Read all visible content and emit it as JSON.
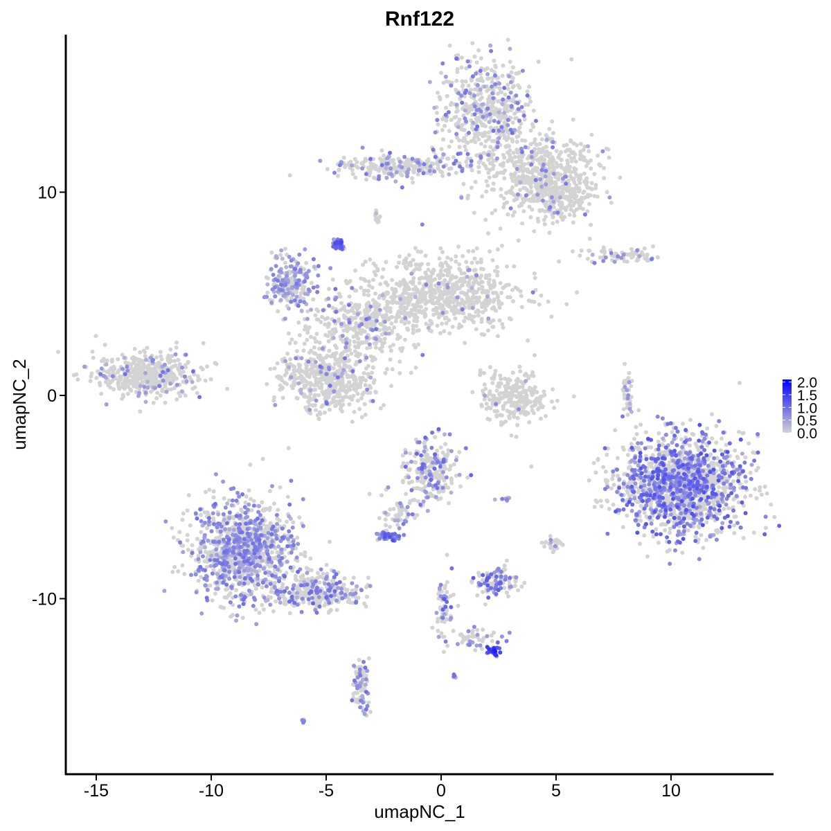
{
  "chart_data": {
    "type": "scatter",
    "title": "Rnf122",
    "xlabel": "umapNC_1",
    "ylabel": "umapNC_2",
    "xlim": [
      -16.3,
      14.5
    ],
    "ylim": [
      -18.6,
      17.7
    ],
    "xticks": [
      -15,
      -10,
      -5,
      0,
      5,
      10
    ],
    "xtick_labels": [
      "-15",
      "-10",
      "-5",
      "0",
      "5",
      "10"
    ],
    "yticks": [
      -10,
      0,
      10
    ],
    "ytick_labels": [
      "-10",
      "0",
      "10"
    ],
    "grid": false,
    "color_scale": {
      "low": "#D3D3D3",
      "high": "#0000FF",
      "min": 0,
      "max": 2.1
    },
    "legend": {
      "position": "right",
      "labels": [
        "2.0",
        "1.5",
        "1.0",
        "0.5",
        "0.0"
      ],
      "values": [
        2.0,
        1.5,
        1.0,
        0.5,
        0.0
      ]
    },
    "clusters": [
      {
        "x": 1.9,
        "y": 14.0,
        "sx": 1.1,
        "sy": 1.4,
        "n": 500,
        "frac": 0.22,
        "level": 1.0
      },
      {
        "x": 4.3,
        "y": 11.0,
        "sx": 1.4,
        "sy": 1.1,
        "n": 500,
        "frac": 0.05,
        "level": 0.9
      },
      {
        "x": 5.0,
        "y": 9.7,
        "sx": 0.9,
        "sy": 0.6,
        "n": 200,
        "frac": 0.06,
        "level": 0.9
      },
      {
        "x": -1.8,
        "y": 11.3,
        "sx": 1.6,
        "sy": 0.35,
        "n": 250,
        "frac": 0.15,
        "level": 1.0
      },
      {
        "x": -2.8,
        "y": 8.7,
        "sx": 0.15,
        "sy": 0.2,
        "n": 15,
        "frac": 0.1,
        "level": 0.8
      },
      {
        "x": -4.5,
        "y": 7.4,
        "sx": 0.15,
        "sy": 0.2,
        "n": 40,
        "frac": 0.9,
        "level": 1.4
      },
      {
        "x": 0.1,
        "y": 5.0,
        "sx": 1.8,
        "sy": 1.0,
        "n": 700,
        "frac": 0.04,
        "level": 0.9
      },
      {
        "x": -6.6,
        "y": 5.5,
        "sx": 0.6,
        "sy": 0.7,
        "n": 220,
        "frac": 0.55,
        "level": 0.9
      },
      {
        "x": -3.6,
        "y": 3.4,
        "sx": 1.2,
        "sy": 1.0,
        "n": 350,
        "frac": 0.12,
        "level": 1.0
      },
      {
        "x": -5.0,
        "y": 0.8,
        "sx": 1.2,
        "sy": 0.9,
        "n": 500,
        "frac": 0.08,
        "level": 1.0
      },
      {
        "x": -12.7,
        "y": 1.0,
        "sx": 1.3,
        "sy": 0.6,
        "n": 450,
        "frac": 0.07,
        "level": 1.0
      },
      {
        "x": 3.2,
        "y": -0.1,
        "sx": 0.8,
        "sy": 0.7,
        "n": 250,
        "frac": 0.02,
        "level": 0.8
      },
      {
        "x": 7.9,
        "y": 6.9,
        "sx": 1.0,
        "sy": 0.2,
        "n": 70,
        "frac": 0.15,
        "level": 1.0
      },
      {
        "x": 8.1,
        "y": 0.0,
        "sx": 0.12,
        "sy": 0.7,
        "n": 40,
        "frac": 0.3,
        "level": 1.0
      },
      {
        "x": 10.4,
        "y": -4.4,
        "sx": 1.5,
        "sy": 1.3,
        "n": 1500,
        "frac": 0.4,
        "level": 1.3
      },
      {
        "x": -8.7,
        "y": -7.6,
        "sx": 1.2,
        "sy": 1.3,
        "n": 1100,
        "frac": 0.4,
        "level": 1.0
      },
      {
        "x": -5.4,
        "y": -9.6,
        "sx": 1.0,
        "sy": 0.5,
        "n": 300,
        "frac": 0.3,
        "level": 1.1
      },
      {
        "x": -3.5,
        "y": -14.3,
        "sx": 0.2,
        "sy": 0.7,
        "n": 80,
        "frac": 0.3,
        "level": 1.0
      },
      {
        "x": -0.5,
        "y": -3.7,
        "sx": 0.7,
        "sy": 0.9,
        "n": 250,
        "frac": 0.25,
        "level": 1.1
      },
      {
        "x": -1.9,
        "y": -5.8,
        "sx": 0.4,
        "sy": 0.5,
        "n": 50,
        "frac": 0.2,
        "level": 1.0
      },
      {
        "x": -2.3,
        "y": -6.9,
        "sx": 0.3,
        "sy": 0.15,
        "n": 50,
        "frac": 0.7,
        "level": 1.3
      },
      {
        "x": 2.4,
        "y": -9.2,
        "sx": 0.5,
        "sy": 0.4,
        "n": 120,
        "frac": 0.35,
        "level": 1.2
      },
      {
        "x": 0.1,
        "y": -10.6,
        "sx": 0.2,
        "sy": 0.8,
        "n": 60,
        "frac": 0.3,
        "level": 1.2
      },
      {
        "x": 1.4,
        "y": -11.9,
        "sx": 0.7,
        "sy": 0.25,
        "n": 50,
        "frac": 0.2,
        "level": 1.0
      },
      {
        "x": 2.3,
        "y": -12.6,
        "sx": 0.15,
        "sy": 0.15,
        "n": 30,
        "frac": 0.9,
        "level": 1.8
      },
      {
        "x": 4.9,
        "y": -7.3,
        "sx": 0.25,
        "sy": 0.2,
        "n": 25,
        "frac": 0.1,
        "level": 0.8
      },
      {
        "x": -6.0,
        "y": -16.0,
        "sx": 0.05,
        "sy": 0.05,
        "n": 6,
        "frac": 0.5,
        "level": 1.0
      },
      {
        "x": 2.7,
        "y": -5.1,
        "sx": 0.2,
        "sy": 0.05,
        "n": 8,
        "frac": 0.6,
        "level": 1.0
      },
      {
        "x": 0.6,
        "y": -13.8,
        "sx": 0.05,
        "sy": 0.05,
        "n": 5,
        "frac": 0.8,
        "level": 1.1
      }
    ]
  }
}
